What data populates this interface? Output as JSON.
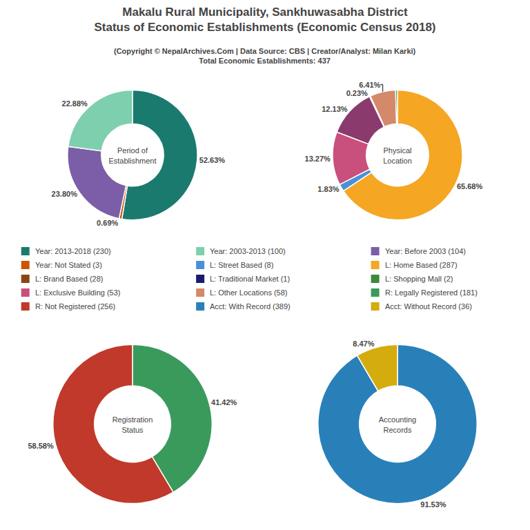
{
  "title": "Makalu Rural Municipality, Sankhuwasabha District\nStatus of Economic Establishments (Economic Census 2018)",
  "subtitle": "(Copyright © NepalArchives.Com | Data Source: CBS | Creator/Analyst: Milan Karki)\nTotal Economic Establishments: 437",
  "annotations": [
    {
      "text": "Year: 2013-2018 (230)",
      "color": "#1a7a6e"
    },
    {
      "text": "Year: 2003-2013 (100)",
      "color": "#7ecfae"
    },
    {
      "text": "Year: Before 2003 (104)",
      "color": "#7b5ea7"
    },
    {
      "text": "Year: Not Stated (3)",
      "color": "#cc5500"
    },
    {
      "text": "L: Street Based (8)",
      "color": "#4a90d9"
    },
    {
      "text": "L: Home Based (287)",
      "color": "#f5a623"
    },
    {
      "text": "L: Brand Based (28)",
      "color": "#8b4513"
    },
    {
      "text": "L: Traditional Market (1)",
      "color": "#1a1a6e"
    },
    {
      "text": "L: Shopping Mall (2)",
      "color": "#3a8b3a"
    },
    {
      "text": "L: Exclusive Building (53)",
      "color": "#c94f7c"
    },
    {
      "text": "L: Other Locations (58)",
      "color": "#d4896a"
    },
    {
      "text": "R: Legally Registered (181)",
      "color": "#3a9a5c"
    },
    {
      "text": "R: Not Registered (256)",
      "color": "#c0392b"
    },
    {
      "text": "Acct: With Record (389)",
      "color": "#2980b9"
    },
    {
      "text": "Acct: Without Record (36)",
      "color": "#d4ac0d"
    }
  ],
  "chart_data": [
    {
      "type": "pie",
      "title": "Period of\nEstablishment",
      "values": [
        52.63,
        0.69,
        23.8,
        22.88
      ],
      "value_labels": [
        "52.63%",
        "0.69%",
        "23.80%",
        "22.88%"
      ],
      "colors": [
        "#1a7a6e",
        "#cc5500",
        "#7b5ea7",
        "#7ecfae"
      ],
      "data_labels": true
    },
    {
      "type": "pie",
      "title": "Physical\nLocation",
      "values": [
        65.68,
        1.83,
        13.27,
        12.13,
        0.23,
        6.41,
        0.46
      ],
      "value_labels": [
        "65.68%",
        "1.83%",
        "13.27%",
        "12.13%",
        "0.23%",
        "6.41%",
        null
      ],
      "colors": [
        "#f5a623",
        "#4a90d9",
        "#c94f7c",
        "#8b3a6e",
        "#2c2c8e",
        "#d4896a",
        "#3a8b3a"
      ],
      "data_labels": true
    },
    {
      "type": "pie",
      "title": "Registration\nStatus",
      "values": [
        41.42,
        58.58
      ],
      "value_labels": [
        "41.42%",
        "58.58%"
      ],
      "colors": [
        "#3a9a5c",
        "#c0392b"
      ],
      "data_labels": true
    },
    {
      "type": "pie",
      "title": "Accounting\nRecords",
      "values": [
        91.53,
        8.47
      ],
      "value_labels": [
        "91.53%",
        "8.47%"
      ],
      "colors": [
        "#2980b9",
        "#d4ac0d"
      ],
      "data_labels": true
    }
  ]
}
